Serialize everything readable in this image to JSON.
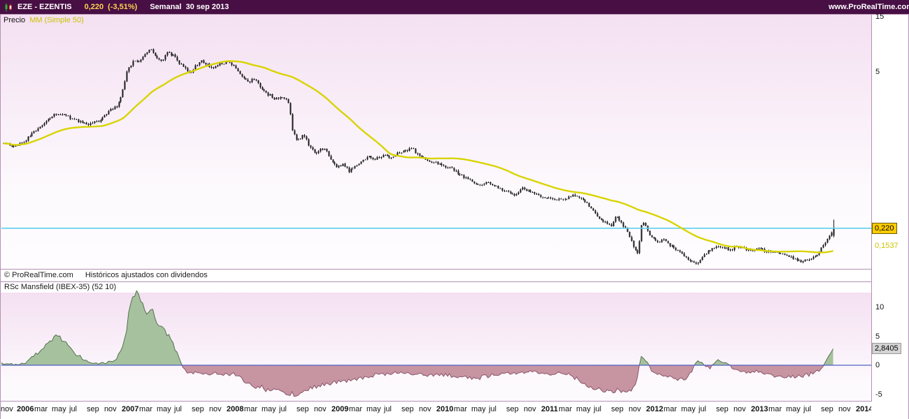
{
  "header": {
    "symbol": "EZE - EZENTIS",
    "price": "0,220",
    "change": "(-3,51%)",
    "timeframe": "Semanal",
    "date": "30 sep 2013",
    "site": "www.ProRealTime.com"
  },
  "price_panel": {
    "label_precio": "Precio",
    "label_mm": "MM (Simple 50)",
    "copyright_left": "© ProRealTime.com",
    "copyright_right": "Históricos ajustados con dividendos",
    "badge_price": "0,220",
    "badge_ma": "0,1537",
    "current_price": 0.22,
    "ma_value": 0.1537,
    "axis_labels": [
      {
        "p": 15,
        "label": "15"
      },
      {
        "p": 5,
        "label": "5"
      }
    ]
  },
  "indicator_panel": {
    "label": "RSc Mansfield (IBEX-35) (52 10)",
    "badge": "2,8405",
    "value": 2.8405,
    "axis_labels": [
      {
        "v": 10,
        "label": "10"
      },
      {
        "v": 5,
        "label": "5"
      },
      {
        "v": 0,
        "label": "0"
      },
      {
        "v": -5,
        "label": "-5"
      }
    ]
  },
  "time_axis": {
    "ticks": [
      {
        "t": 2005.833,
        "label": "nov"
      },
      {
        "t": 2006,
        "label": "2006",
        "bold": true
      },
      {
        "t": 2006.167,
        "label": "mar"
      },
      {
        "t": 2006.333,
        "label": "may"
      },
      {
        "t": 2006.5,
        "label": "jul"
      },
      {
        "t": 2006.667,
        "label": "sep"
      },
      {
        "t": 2006.833,
        "label": "nov"
      },
      {
        "t": 2007,
        "label": "2007",
        "bold": true
      },
      {
        "t": 2007.167,
        "label": "mar"
      },
      {
        "t": 2007.333,
        "label": "may"
      },
      {
        "t": 2007.5,
        "label": "jul"
      },
      {
        "t": 2007.667,
        "label": "sep"
      },
      {
        "t": 2007.833,
        "label": "nov"
      },
      {
        "t": 2008,
        "label": "2008",
        "bold": true
      },
      {
        "t": 2008.167,
        "label": "mar"
      },
      {
        "t": 2008.333,
        "label": "may"
      },
      {
        "t": 2008.5,
        "label": "jul"
      },
      {
        "t": 2008.667,
        "label": "sep"
      },
      {
        "t": 2008.833,
        "label": "nov"
      },
      {
        "t": 2009,
        "label": "2009",
        "bold": true
      },
      {
        "t": 2009.167,
        "label": "mar"
      },
      {
        "t": 2009.333,
        "label": "may"
      },
      {
        "t": 2009.5,
        "label": "jul"
      },
      {
        "t": 2009.667,
        "label": "sep"
      },
      {
        "t": 2009.833,
        "label": "nov"
      },
      {
        "t": 2010,
        "label": "2010",
        "bold": true
      },
      {
        "t": 2010.167,
        "label": "mar"
      },
      {
        "t": 2010.333,
        "label": "may"
      },
      {
        "t": 2010.5,
        "label": "jul"
      },
      {
        "t": 2010.667,
        "label": "sep"
      },
      {
        "t": 2010.833,
        "label": "nov"
      },
      {
        "t": 2011,
        "label": "2011",
        "bold": true
      },
      {
        "t": 2011.167,
        "label": "mar"
      },
      {
        "t": 2011.333,
        "label": "may"
      },
      {
        "t": 2011.5,
        "label": "jul"
      },
      {
        "t": 2011.667,
        "label": "sep"
      },
      {
        "t": 2011.833,
        "label": "nov"
      },
      {
        "t": 2012,
        "label": "2012",
        "bold": true
      },
      {
        "t": 2012.167,
        "label": "mar"
      },
      {
        "t": 2012.333,
        "label": "may"
      },
      {
        "t": 2012.5,
        "label": "jul"
      },
      {
        "t": 2012.667,
        "label": "sep"
      },
      {
        "t": 2012.833,
        "label": "nov"
      },
      {
        "t": 2013,
        "label": "2013",
        "bold": true
      },
      {
        "t": 2013.167,
        "label": "mar"
      },
      {
        "t": 2013.333,
        "label": "may"
      },
      {
        "t": 2013.5,
        "label": "jul"
      },
      {
        "t": 2013.667,
        "label": "sep"
      },
      {
        "t": 2013.833,
        "label": "nov"
      },
      {
        "t": 2014,
        "label": "2014",
        "bold": true
      }
    ]
  },
  "colors": {
    "header_bg": "#470f44",
    "header_accent": "#ffd24d",
    "panel_border": "#b391b3",
    "plot_bg_top": "#f4e0f2",
    "plot_bg_bottom": "#fdfafd",
    "candle": "#1a1a1a",
    "ma_line": "#d8d400",
    "ma_label": "#c9c300",
    "hline_cyan": "#5ecfee",
    "price_badge_bg": "#ffcc00",
    "value_badge_bg": "#d4d4d4",
    "rsc_fill_pos": "#a6c19e",
    "rsc_line_pos": "#55714f",
    "rsc_fill_neg": "#c794a2",
    "rsc_line_neg": "#8a5668",
    "zero_line": "#5161c9"
  },
  "chart_data": [
    {
      "type": "candlestick",
      "name": "EZE - EZENTIS precio semanal",
      "x_unit": "decimal_year",
      "x_range": [
        2005.8,
        2014.1
      ],
      "y_scale": "log",
      "y_axis_labels_visible": [
        15,
        5
      ],
      "overlays": [
        {
          "type": "sma",
          "period": 50,
          "value_at_end": 0.1537
        },
        {
          "type": "hline",
          "value": 0.22
        }
      ],
      "last_candle": {
        "o": 0.19,
        "h": 0.262,
        "l": 0.183,
        "c": 0.22
      },
      "close_keyframes": [
        [
          2005.82,
          1.2
        ],
        [
          2005.92,
          1.12
        ],
        [
          2006.02,
          1.25
        ],
        [
          2006.12,
          1.55
        ],
        [
          2006.23,
          1.9
        ],
        [
          2006.33,
          2.2
        ],
        [
          2006.43,
          2.05
        ],
        [
          2006.53,
          1.85
        ],
        [
          2006.63,
          1.75
        ],
        [
          2006.73,
          1.85
        ],
        [
          2006.83,
          2.3
        ],
        [
          2006.9,
          2.5
        ],
        [
          2006.95,
          3.3
        ],
        [
          2007.0,
          5.2
        ],
        [
          2007.06,
          6.3
        ],
        [
          2007.11,
          6.0
        ],
        [
          2007.17,
          7.3
        ],
        [
          2007.22,
          7.9
        ],
        [
          2007.27,
          6.6
        ],
        [
          2007.33,
          6.2
        ],
        [
          2007.38,
          7.5
        ],
        [
          2007.44,
          6.9
        ],
        [
          2007.49,
          6.0
        ],
        [
          2007.54,
          5.5
        ],
        [
          2007.6,
          4.8
        ],
        [
          2007.65,
          5.6
        ],
        [
          2007.71,
          6.2
        ],
        [
          2007.76,
          5.8
        ],
        [
          2007.81,
          5.4
        ],
        [
          2007.88,
          5.9
        ],
        [
          2007.95,
          6.1
        ],
        [
          2008.02,
          5.6
        ],
        [
          2008.08,
          4.6
        ],
        [
          2008.15,
          4.1
        ],
        [
          2008.21,
          4.4
        ],
        [
          2008.27,
          3.6
        ],
        [
          2008.34,
          3.2
        ],
        [
          2008.41,
          2.9
        ],
        [
          2008.48,
          3.0
        ],
        [
          2008.53,
          2.8
        ],
        [
          2008.57,
          1.6
        ],
        [
          2008.62,
          1.25
        ],
        [
          2008.68,
          1.45
        ],
        [
          2008.73,
          1.15
        ],
        [
          2008.79,
          0.95
        ],
        [
          2008.84,
          1.1
        ],
        [
          2008.89,
          1.05
        ],
        [
          2008.95,
          0.85
        ],
        [
          2009.0,
          0.75
        ],
        [
          2009.06,
          0.8
        ],
        [
          2009.11,
          0.68
        ],
        [
          2009.16,
          0.74
        ],
        [
          2009.23,
          0.85
        ],
        [
          2009.3,
          0.92
        ],
        [
          2009.37,
          0.88
        ],
        [
          2009.44,
          0.95
        ],
        [
          2009.5,
          0.9
        ],
        [
          2009.57,
          0.98
        ],
        [
          2009.64,
          1.02
        ],
        [
          2009.71,
          1.09
        ],
        [
          2009.77,
          0.95
        ],
        [
          2009.84,
          0.88
        ],
        [
          2009.92,
          0.82
        ],
        [
          2010.01,
          0.77
        ],
        [
          2010.1,
          0.72
        ],
        [
          2010.18,
          0.63
        ],
        [
          2010.26,
          0.58
        ],
        [
          2010.35,
          0.51
        ],
        [
          2010.44,
          0.55
        ],
        [
          2010.52,
          0.5
        ],
        [
          2010.6,
          0.46
        ],
        [
          2010.69,
          0.43
        ],
        [
          2010.77,
          0.49
        ],
        [
          2010.85,
          0.45
        ],
        [
          2010.94,
          0.42
        ],
        [
          2011.02,
          0.4
        ],
        [
          2011.11,
          0.39
        ],
        [
          2011.19,
          0.4
        ],
        [
          2011.27,
          0.43
        ],
        [
          2011.34,
          0.4
        ],
        [
          2011.41,
          0.33
        ],
        [
          2011.48,
          0.28
        ],
        [
          2011.54,
          0.25
        ],
        [
          2011.61,
          0.23
        ],
        [
          2011.66,
          0.28
        ],
        [
          2011.72,
          0.24
        ],
        [
          2011.77,
          0.2
        ],
        [
          2011.82,
          0.155
        ],
        [
          2011.87,
          0.13
        ],
        [
          2011.91,
          0.26
        ],
        [
          2011.96,
          0.21
        ],
        [
          2012.0,
          0.18
        ],
        [
          2012.06,
          0.165
        ],
        [
          2012.11,
          0.175
        ],
        [
          2012.16,
          0.16
        ],
        [
          2012.22,
          0.145
        ],
        [
          2012.27,
          0.135
        ],
        [
          2012.33,
          0.12
        ],
        [
          2012.38,
          0.112
        ],
        [
          2012.43,
          0.108
        ],
        [
          2012.49,
          0.125
        ],
        [
          2012.54,
          0.14
        ],
        [
          2012.61,
          0.155
        ],
        [
          2012.68,
          0.15
        ],
        [
          2012.75,
          0.143
        ],
        [
          2012.81,
          0.152
        ],
        [
          2012.88,
          0.146
        ],
        [
          2012.95,
          0.14
        ],
        [
          2013.02,
          0.147
        ],
        [
          2013.08,
          0.14
        ],
        [
          2013.15,
          0.136
        ],
        [
          2013.22,
          0.131
        ],
        [
          2013.29,
          0.126
        ],
        [
          2013.35,
          0.12
        ],
        [
          2013.42,
          0.114
        ],
        [
          2013.49,
          0.117
        ],
        [
          2013.54,
          0.125
        ],
        [
          2013.59,
          0.134
        ],
        [
          2013.64,
          0.16
        ],
        [
          2013.69,
          0.185
        ],
        [
          2013.73,
          0.22
        ]
      ]
    },
    {
      "type": "area",
      "name": "RSc Mansfield (IBEX-35) (52 10)",
      "x_unit": "decimal_year",
      "x_range": [
        2005.8,
        2013.73
      ],
      "y_axis_labels_visible": [
        10,
        5,
        0,
        -5
      ],
      "zero_baseline": 0,
      "last_value": 2.8405,
      "keyframes": [
        [
          2005.8,
          0.3
        ],
        [
          2005.95,
          0.2
        ],
        [
          2006.05,
          0.6
        ],
        [
          2006.15,
          2.2
        ],
        [
          2006.25,
          4.2
        ],
        [
          2006.33,
          5.1
        ],
        [
          2006.42,
          3.8
        ],
        [
          2006.52,
          1.8
        ],
        [
          2006.62,
          0.6
        ],
        [
          2006.72,
          0.3
        ],
        [
          2006.82,
          0.5
        ],
        [
          2006.9,
          1.2
        ],
        [
          2006.96,
          3.5
        ],
        [
          2007.02,
          9.0
        ],
        [
          2007.06,
          12.6
        ],
        [
          2007.12,
          11.2
        ],
        [
          2007.17,
          9.2
        ],
        [
          2007.22,
          9.8
        ],
        [
          2007.28,
          8.0
        ],
        [
          2007.34,
          6.6
        ],
        [
          2007.4,
          5.0
        ],
        [
          2007.46,
          2.6
        ],
        [
          2007.51,
          0.4
        ],
        [
          2007.56,
          -1.0
        ],
        [
          2007.62,
          -1.4
        ],
        [
          2007.7,
          -1.2
        ],
        [
          2007.78,
          -1.6
        ],
        [
          2007.86,
          -1.4
        ],
        [
          2007.94,
          -1.7
        ],
        [
          2008.02,
          -1.5
        ],
        [
          2008.12,
          -2.6
        ],
        [
          2008.22,
          -3.6
        ],
        [
          2008.32,
          -4.1
        ],
        [
          2008.42,
          -3.9
        ],
        [
          2008.52,
          -4.6
        ],
        [
          2008.62,
          -5.0
        ],
        [
          2008.72,
          -4.3
        ],
        [
          2008.82,
          -3.6
        ],
        [
          2008.92,
          -3.1
        ],
        [
          2009.02,
          -2.9
        ],
        [
          2009.12,
          -2.5
        ],
        [
          2009.22,
          -2.2
        ],
        [
          2009.32,
          -1.9
        ],
        [
          2009.42,
          -1.6
        ],
        [
          2009.52,
          -1.3
        ],
        [
          2009.62,
          -1.1
        ],
        [
          2009.72,
          -1.4
        ],
        [
          2009.82,
          -1.6
        ],
        [
          2009.92,
          -1.9
        ],
        [
          2010.02,
          -1.6
        ],
        [
          2010.12,
          -1.9
        ],
        [
          2010.22,
          -2.1
        ],
        [
          2010.32,
          -2.3
        ],
        [
          2010.42,
          -1.9
        ],
        [
          2010.52,
          -1.6
        ],
        [
          2010.62,
          -1.3
        ],
        [
          2010.72,
          -1.5
        ],
        [
          2010.82,
          -1.1
        ],
        [
          2010.92,
          -1.3
        ],
        [
          2011.02,
          -1.6
        ],
        [
          2011.12,
          -1.4
        ],
        [
          2011.22,
          -1.7
        ],
        [
          2011.32,
          -2.6
        ],
        [
          2011.42,
          -3.6
        ],
        [
          2011.52,
          -4.3
        ],
        [
          2011.62,
          -4.6
        ],
        [
          2011.72,
          -4.4
        ],
        [
          2011.8,
          -4.7
        ],
        [
          2011.86,
          -2.5
        ],
        [
          2011.9,
          1.6
        ],
        [
          2011.95,
          0.6
        ],
        [
          2012.0,
          -1.0
        ],
        [
          2012.1,
          -1.9
        ],
        [
          2012.2,
          -2.3
        ],
        [
          2012.3,
          -2.6
        ],
        [
          2012.38,
          -1.2
        ],
        [
          2012.43,
          0.9
        ],
        [
          2012.49,
          0.4
        ],
        [
          2012.55,
          -0.6
        ],
        [
          2012.63,
          0.9
        ],
        [
          2012.7,
          0.5
        ],
        [
          2012.8,
          -0.9
        ],
        [
          2012.9,
          -1.3
        ],
        [
          2013.0,
          -1.1
        ],
        [
          2013.1,
          -1.6
        ],
        [
          2013.2,
          -1.9
        ],
        [
          2013.3,
          -2.1
        ],
        [
          2013.4,
          -1.9
        ],
        [
          2013.5,
          -1.6
        ],
        [
          2013.57,
          -1.1
        ],
        [
          2013.63,
          -0.4
        ],
        [
          2013.68,
          1.2
        ],
        [
          2013.73,
          2.8405
        ]
      ]
    }
  ]
}
